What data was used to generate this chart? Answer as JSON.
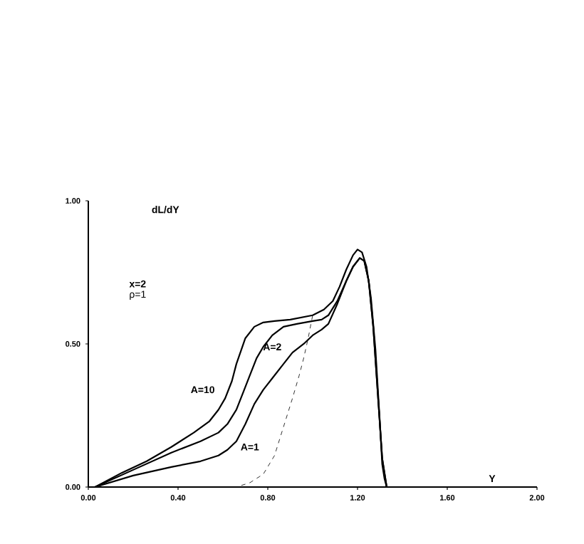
{
  "chart_data": {
    "type": "line",
    "xlabel": "Y",
    "ylabel": "dL/dY",
    "xlim": [
      0,
      2
    ],
    "ylim": [
      0,
      1
    ],
    "xticks": [
      {
        "value": 0,
        "label": "0.00"
      },
      {
        "value": 0.4,
        "label": "0.40"
      },
      {
        "value": 0.8,
        "label": "0.80"
      },
      {
        "value": 1.2,
        "label": "1.20"
      },
      {
        "value": 1.6,
        "label": "1.60"
      },
      {
        "value": 2,
        "label": "2.00"
      }
    ],
    "yticks": [
      {
        "value": 0,
        "label": "0.00"
      },
      {
        "value": 0.5,
        "label": "0.50"
      },
      {
        "value": 1,
        "label": "1.00"
      }
    ],
    "annotations": [
      "x=2",
      "ρ=1",
      "A=10",
      "A=2",
      "A=1"
    ],
    "series": [
      {
        "color": "#000000",
        "line_style": "solid",
        "x": [
          0,
          0.03,
          0.15,
          0.26,
          0.37,
          0.47,
          0.54,
          0.58,
          0.61,
          0.64,
          0.66,
          0.7,
          0.74,
          0.78,
          0.83,
          0.9,
          1.0,
          1.05,
          1.09,
          1.12,
          1.15,
          1.18,
          1.2,
          1.22,
          1.24,
          1.26,
          1.28,
          1.29,
          1.3,
          1.31,
          1.32,
          1.33
        ],
        "values": [
          0,
          0,
          0.05,
          0.09,
          0.14,
          0.19,
          0.23,
          0.27,
          0.31,
          0.37,
          0.43,
          0.52,
          0.56,
          0.575,
          0.58,
          0.585,
          0.6,
          0.62,
          0.65,
          0.7,
          0.76,
          0.81,
          0.83,
          0.82,
          0.77,
          0.66,
          0.48,
          0.35,
          0.22,
          0.08,
          0.03,
          0
        ]
      },
      {
        "color": "#000000",
        "line_style": "solid",
        "x": [
          0,
          0.03,
          0.2,
          0.37,
          0.5,
          0.58,
          0.62,
          0.66,
          0.69,
          0.72,
          0.75,
          0.78,
          0.82,
          0.87,
          0.93,
          1.0,
          1.04,
          1.07,
          1.11,
          1.15,
          1.18,
          1.21,
          1.23,
          1.25,
          1.27,
          1.29,
          1.31,
          1.33
        ],
        "values": [
          0,
          0,
          0.06,
          0.12,
          0.16,
          0.19,
          0.22,
          0.27,
          0.33,
          0.39,
          0.45,
          0.49,
          0.53,
          0.56,
          0.57,
          0.58,
          0.585,
          0.6,
          0.65,
          0.72,
          0.77,
          0.8,
          0.79,
          0.72,
          0.56,
          0.33,
          0.1,
          0
        ]
      },
      {
        "color": "#000000",
        "line_style": "solid",
        "x": [
          0,
          0.03,
          0.2,
          0.37,
          0.5,
          0.58,
          0.62,
          0.66,
          0.7,
          0.74,
          0.78,
          0.83,
          0.87,
          0.91,
          0.96,
          1.0,
          1.04,
          1.07,
          1.11,
          1.15,
          1.18,
          1.21,
          1.23,
          1.25,
          1.27,
          1.29,
          1.31,
          1.33
        ],
        "values": [
          0,
          0,
          0.04,
          0.07,
          0.09,
          0.11,
          0.13,
          0.16,
          0.22,
          0.29,
          0.34,
          0.39,
          0.43,
          0.47,
          0.5,
          0.53,
          0.55,
          0.57,
          0.64,
          0.72,
          0.77,
          0.8,
          0.79,
          0.72,
          0.56,
          0.33,
          0.1,
          0
        ]
      },
      {
        "color": "#000000",
        "line_style": "dashed",
        "x": [
          0,
          0.66,
          0.72,
          0.78,
          0.83,
          0.87,
          0.91,
          0.94,
          0.96,
          0.98,
          1.0
        ],
        "values": [
          0,
          0,
          0.015,
          0.045,
          0.11,
          0.21,
          0.31,
          0.39,
          0.45,
          0.52,
          0.6
        ]
      }
    ]
  }
}
